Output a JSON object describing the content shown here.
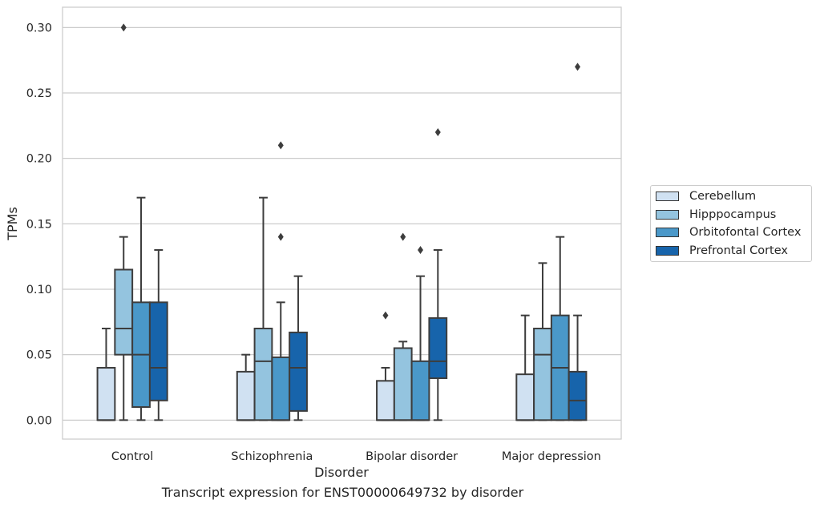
{
  "chart_data": {
    "type": "boxplot",
    "title": "",
    "caption": "Transcript expression for ENST00000649732 by disorder",
    "xlabel": "Disorder",
    "ylabel": "TPMs",
    "ylim": [
      -0.0145,
      0.3155
    ],
    "yticks": [
      "0.00",
      "0.05",
      "0.10",
      "0.15",
      "0.20",
      "0.25",
      "0.30"
    ],
    "ytick_values": [
      0,
      0.05,
      0.1,
      0.15,
      0.2,
      0.25,
      0.3
    ],
    "grid": "horizontal",
    "legend_position": "right",
    "categories": [
      "Control",
      "Schizophrenia",
      "Bipolar disorder",
      "Major depression"
    ],
    "series": [
      {
        "name": "Cerebellum",
        "color": "#d0e1f2",
        "boxes": [
          {
            "min": 0.0,
            "q1": 0.0,
            "median": 0.0,
            "q3": 0.04,
            "max": 0.07,
            "outliers": []
          },
          {
            "min": 0.0,
            "q1": 0.0,
            "median": 0.0,
            "q3": 0.037,
            "max": 0.05,
            "outliers": []
          },
          {
            "min": 0.0,
            "q1": 0.0,
            "median": 0.0,
            "q3": 0.03,
            "max": 0.04,
            "outliers": [
              0.08
            ]
          },
          {
            "min": 0.0,
            "q1": 0.0,
            "median": 0.0,
            "q3": 0.035,
            "max": 0.08,
            "outliers": []
          }
        ]
      },
      {
        "name": "Hipppocampus",
        "color": "#94c4df",
        "boxes": [
          {
            "min": 0.0,
            "q1": 0.05,
            "median": 0.07,
            "q3": 0.115,
            "max": 0.14,
            "outliers": [
              0.3
            ]
          },
          {
            "min": 0.0,
            "q1": 0.0,
            "median": 0.045,
            "q3": 0.07,
            "max": 0.17,
            "outliers": []
          },
          {
            "min": 0.0,
            "q1": 0.0,
            "median": 0.0,
            "q3": 0.055,
            "max": 0.06,
            "outliers": [
              0.14
            ]
          },
          {
            "min": 0.0,
            "q1": 0.0,
            "median": 0.05,
            "q3": 0.07,
            "max": 0.12,
            "outliers": []
          }
        ]
      },
      {
        "name": "Orbitofontal Cortex",
        "color": "#4a98c9",
        "boxes": [
          {
            "min": 0.0,
            "q1": 0.01,
            "median": 0.05,
            "q3": 0.09,
            "max": 0.17,
            "outliers": []
          },
          {
            "min": 0.0,
            "q1": 0.0,
            "median": 0.0,
            "q3": 0.048,
            "max": 0.09,
            "outliers": [
              0.14,
              0.21
            ]
          },
          {
            "min": 0.0,
            "q1": 0.0,
            "median": 0.0,
            "q3": 0.045,
            "max": 0.11,
            "outliers": [
              0.13
            ]
          },
          {
            "min": 0.0,
            "q1": 0.0,
            "median": 0.04,
            "q3": 0.08,
            "max": 0.14,
            "outliers": []
          }
        ]
      },
      {
        "name": "Prefrontal Cortex",
        "color": "#1764ab",
        "boxes": [
          {
            "min": 0.0,
            "q1": 0.015,
            "median": 0.04,
            "q3": 0.09,
            "max": 0.13,
            "outliers": []
          },
          {
            "min": 0.0,
            "q1": 0.007,
            "median": 0.04,
            "q3": 0.067,
            "max": 0.11,
            "outliers": []
          },
          {
            "min": 0.0,
            "q1": 0.032,
            "median": 0.045,
            "q3": 0.078,
            "max": 0.13,
            "outliers": [
              0.22
            ]
          },
          {
            "min": 0.0,
            "q1": 0.0,
            "median": 0.015,
            "q3": 0.037,
            "max": 0.08,
            "outliers": [
              0.27
            ]
          }
        ]
      }
    ]
  }
}
